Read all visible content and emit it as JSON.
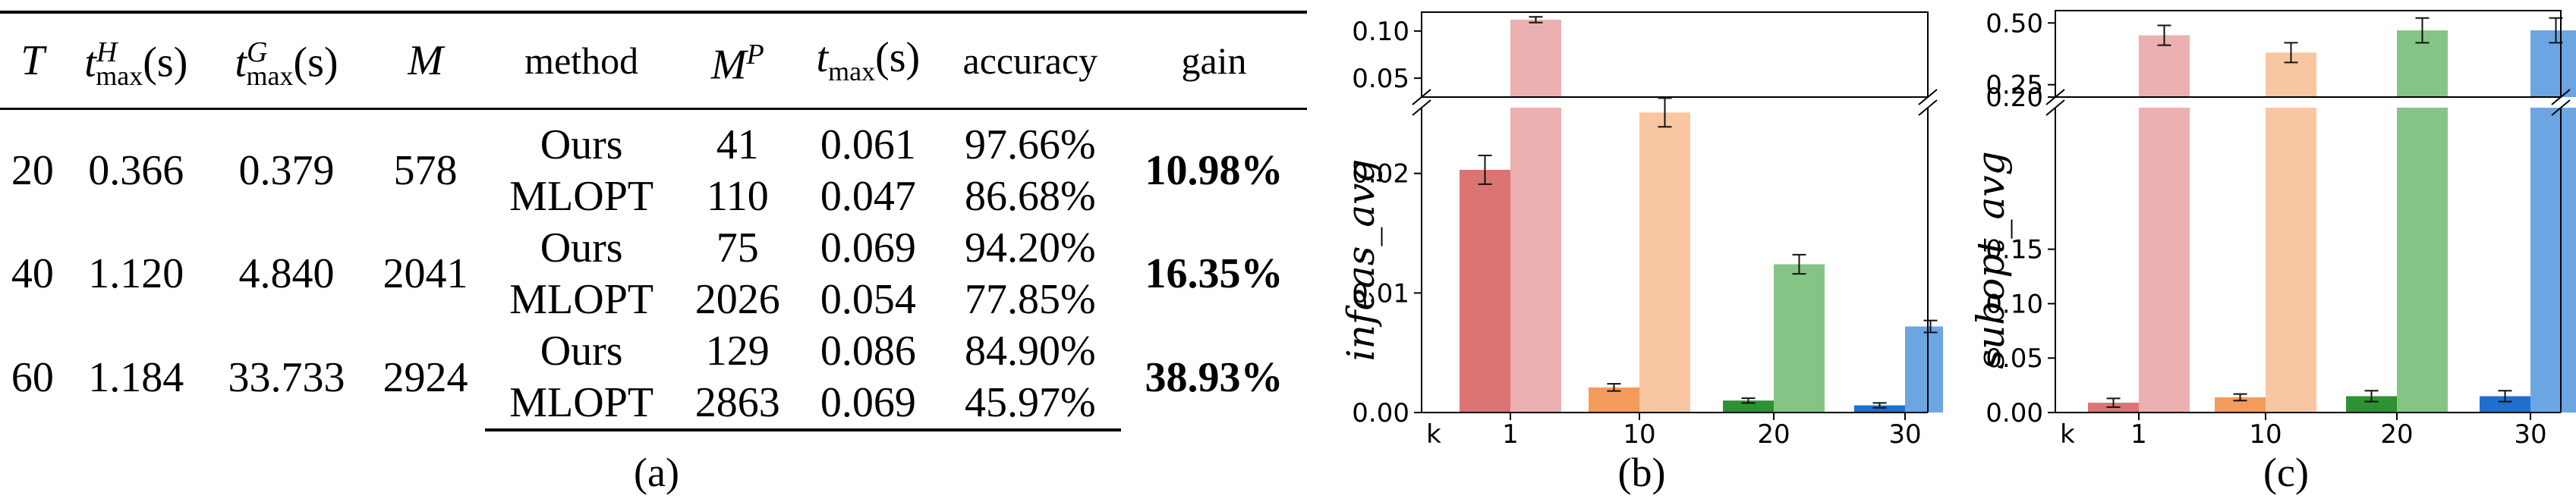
{
  "table": {
    "headers": [
      "T",
      "t_max^H(s)",
      "t_max^G(s)",
      "M",
      "method",
      "M^P",
      "t_max(s)",
      "accuracy",
      "gain"
    ],
    "header_parts": {
      "T": "T",
      "tH_base": "t",
      "tH_sup": "H",
      "tH_sub": "max",
      "tH_tail": "(s)",
      "tG_base": "t",
      "tG_sup": "G",
      "tG_sub": "max",
      "tG_tail": "(s)",
      "M": "M",
      "method": "method",
      "MP_base": "M",
      "MP_sup": "P",
      "tmax_base": "t",
      "tmax_sub": "max",
      "tmax_tail": "(s)",
      "accuracy": "accuracy",
      "gain": "gain"
    },
    "groups": [
      {
        "T": "20",
        "tH": "0.366",
        "tG": "0.379",
        "M": "578",
        "gain": "10.98%",
        "rows": [
          {
            "method": "Ours",
            "MP": "41",
            "tmax": "0.061",
            "accuracy": "97.66%"
          },
          {
            "method": "MLOPT",
            "MP": "110",
            "tmax": "0.047",
            "accuracy": "86.68%"
          }
        ]
      },
      {
        "T": "40",
        "tH": "1.120",
        "tG": "4.840",
        "M": "2041",
        "gain": "16.35%",
        "rows": [
          {
            "method": "Ours",
            "MP": "75",
            "tmax": "0.069",
            "accuracy": "94.20%"
          },
          {
            "method": "MLOPT",
            "MP": "2026",
            "tmax": "0.054",
            "accuracy": "77.85%"
          }
        ]
      },
      {
        "T": "60",
        "tH": "1.184",
        "tG": "33.733",
        "M": "2924",
        "gain": "38.93%",
        "rows": [
          {
            "method": "Ours",
            "MP": "129",
            "tmax": "0.086",
            "accuracy": "84.90%"
          },
          {
            "method": "MLOPT",
            "MP": "2863",
            "tmax": "0.069",
            "accuracy": "45.97%"
          }
        ]
      }
    ]
  },
  "panel_labels": {
    "a": "(a)",
    "b": "(b)",
    "c": "(c)"
  },
  "chart_data": [
    {
      "type": "bar",
      "panel": "b",
      "ylabel": "infeas_avg",
      "x_prefix": "k",
      "categories": [
        "1",
        "10",
        "20",
        "30"
      ],
      "broken_axis": true,
      "lower_ylim": [
        0,
        0.0255
      ],
      "upper_ylim": [
        0.03,
        0.12
      ],
      "lower_ticks": [
        "0.00",
        "0.01",
        "0.02"
      ],
      "lower_tick_values": [
        0,
        0.01,
        0.02
      ],
      "upper_ticks": [
        "0.05",
        "0.10"
      ],
      "upper_tick_values": [
        0.05,
        0.1
      ],
      "series": [
        {
          "values": [
            0.0203,
            0.0021,
            0.001,
            0.0006
          ],
          "errors": [
            0.0012,
            0.0003,
            0.0002,
            0.0002
          ],
          "colors": [
            "#dd7474",
            "#f39b5c",
            "#2e9134",
            "#1f6fd1"
          ]
        },
        {
          "values": [
            0.112,
            0.0251,
            0.0124,
            0.0072
          ],
          "errors": [
            0.003,
            0.0012,
            0.0008,
            0.0005
          ],
          "colors": [
            "#ecb0b0",
            "#f9c6a3",
            "#86c486",
            "#6ba6e3"
          ]
        }
      ]
    },
    {
      "type": "bar",
      "panel": "c",
      "ylabel": "subopt_avg",
      "x_prefix": "k",
      "categories": [
        "1",
        "10",
        "20",
        "30"
      ],
      "broken_axis": true,
      "lower_ylim": [
        0,
        0.28
      ],
      "upper_ylim": [
        0.2,
        0.55
      ],
      "lower_ticks": [
        "0.00",
        "0.05",
        "0.10",
        "0.15"
      ],
      "lower_tick_values": [
        0,
        0.05,
        0.1,
        0.15
      ],
      "upper_ticks": [
        "0.20",
        "0.25",
        "0.50"
      ],
      "upper_tick_values": [
        0.2,
        0.25,
        0.5
      ],
      "series": [
        {
          "values": [
            0.009,
            0.014,
            0.015,
            0.015
          ],
          "errors": [
            0.004,
            0.003,
            0.005,
            0.005
          ],
          "colors": [
            "#dd7474",
            "#f39b5c",
            "#2e9134",
            "#1f6fd1"
          ]
        },
        {
          "values": [
            0.45,
            0.38,
            0.47,
            0.47
          ],
          "errors": [
            0.04,
            0.04,
            0.05,
            0.05
          ],
          "colors": [
            "#ecb0b0",
            "#f9c6a3",
            "#86c486",
            "#6ba6e3"
          ]
        }
      ]
    }
  ]
}
